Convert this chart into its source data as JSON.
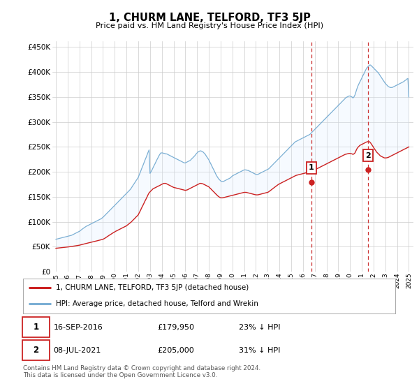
{
  "title": "1, CHURM LANE, TELFORD, TF3 5JP",
  "subtitle": "Price paid vs. HM Land Registry's House Price Index (HPI)",
  "ylabel_ticks": [
    "£0",
    "£50K",
    "£100K",
    "£150K",
    "£200K",
    "£250K",
    "£300K",
    "£350K",
    "£400K",
    "£450K"
  ],
  "ytick_values": [
    0,
    50000,
    100000,
    150000,
    200000,
    250000,
    300000,
    350000,
    400000,
    450000
  ],
  "ylim": [
    0,
    462000
  ],
  "xlim_start": 1994.7,
  "xlim_end": 2025.4,
  "background_color": "#ffffff",
  "grid_color": "#cccccc",
  "hpi_color": "#7bafd4",
  "hpi_fill_color": "#ddeeff",
  "property_color": "#cc2222",
  "annotation_line_color": "#cc3333",
  "annotations": [
    {
      "label": "1",
      "x_year": 2016.71,
      "y_value": 179950,
      "date": "16-SEP-2016",
      "price": "£179,950",
      "pct": "23% ↓ HPI"
    },
    {
      "label": "2",
      "x_year": 2021.52,
      "y_value": 205000,
      "date": "08-JUL-2021",
      "price": "£205,000",
      "pct": "31% ↓ HPI"
    }
  ],
  "legend_entries": [
    {
      "label": "1, CHURM LANE, TELFORD, TF3 5JP (detached house)",
      "color": "#cc2222"
    },
    {
      "label": "HPI: Average price, detached house, Telford and Wrekin",
      "color": "#7bafd4"
    }
  ],
  "footnote": "Contains HM Land Registry data © Crown copyright and database right 2024.\nThis data is licensed under the Open Government Licence v3.0.",
  "hpi_years": [
    1995.0,
    1995.08,
    1995.17,
    1995.25,
    1995.33,
    1995.42,
    1995.5,
    1995.58,
    1995.67,
    1995.75,
    1995.83,
    1995.92,
    1996.0,
    1996.08,
    1996.17,
    1996.25,
    1996.33,
    1996.42,
    1996.5,
    1996.58,
    1996.67,
    1996.75,
    1996.83,
    1996.92,
    1997.0,
    1997.08,
    1997.17,
    1997.25,
    1997.33,
    1997.42,
    1997.5,
    1997.58,
    1997.67,
    1997.75,
    1997.83,
    1997.92,
    1998.0,
    1998.08,
    1998.17,
    1998.25,
    1998.33,
    1998.42,
    1998.5,
    1998.58,
    1998.67,
    1998.75,
    1998.83,
    1998.92,
    1999.0,
    1999.08,
    1999.17,
    1999.25,
    1999.33,
    1999.42,
    1999.5,
    1999.58,
    1999.67,
    1999.75,
    1999.83,
    1999.92,
    2000.0,
    2000.08,
    2000.17,
    2000.25,
    2000.33,
    2000.42,
    2000.5,
    2000.58,
    2000.67,
    2000.75,
    2000.83,
    2000.92,
    2001.0,
    2001.08,
    2001.17,
    2001.25,
    2001.33,
    2001.42,
    2001.5,
    2001.58,
    2001.67,
    2001.75,
    2001.83,
    2001.92,
    2002.0,
    2002.08,
    2002.17,
    2002.25,
    2002.33,
    2002.42,
    2002.5,
    2002.58,
    2002.67,
    2002.75,
    2002.83,
    2002.92,
    2003.0,
    2003.08,
    2003.17,
    2003.25,
    2003.33,
    2003.42,
    2003.5,
    2003.58,
    2003.67,
    2003.75,
    2003.83,
    2003.92,
    2004.0,
    2004.08,
    2004.17,
    2004.25,
    2004.33,
    2004.42,
    2004.5,
    2004.58,
    2004.67,
    2004.75,
    2004.83,
    2004.92,
    2005.0,
    2005.08,
    2005.17,
    2005.25,
    2005.33,
    2005.42,
    2005.5,
    2005.58,
    2005.67,
    2005.75,
    2005.83,
    2005.92,
    2006.0,
    2006.08,
    2006.17,
    2006.25,
    2006.33,
    2006.42,
    2006.5,
    2006.58,
    2006.67,
    2006.75,
    2006.83,
    2006.92,
    2007.0,
    2007.08,
    2007.17,
    2007.25,
    2007.33,
    2007.42,
    2007.5,
    2007.58,
    2007.67,
    2007.75,
    2007.83,
    2007.92,
    2008.0,
    2008.08,
    2008.17,
    2008.25,
    2008.33,
    2008.42,
    2008.5,
    2008.58,
    2008.67,
    2008.75,
    2008.83,
    2008.92,
    2009.0,
    2009.08,
    2009.17,
    2009.25,
    2009.33,
    2009.42,
    2009.5,
    2009.58,
    2009.67,
    2009.75,
    2009.83,
    2009.92,
    2010.0,
    2010.08,
    2010.17,
    2010.25,
    2010.33,
    2010.42,
    2010.5,
    2010.58,
    2010.67,
    2010.75,
    2010.83,
    2010.92,
    2011.0,
    2011.08,
    2011.17,
    2011.25,
    2011.33,
    2011.42,
    2011.5,
    2011.58,
    2011.67,
    2011.75,
    2011.83,
    2011.92,
    2012.0,
    2012.08,
    2012.17,
    2012.25,
    2012.33,
    2012.42,
    2012.5,
    2012.58,
    2012.67,
    2012.75,
    2012.83,
    2012.92,
    2013.0,
    2013.08,
    2013.17,
    2013.25,
    2013.33,
    2013.42,
    2013.5,
    2013.58,
    2013.67,
    2013.75,
    2013.83,
    2013.92,
    2014.0,
    2014.08,
    2014.17,
    2014.25,
    2014.33,
    2014.42,
    2014.5,
    2014.58,
    2014.67,
    2014.75,
    2014.83,
    2014.92,
    2015.0,
    2015.08,
    2015.17,
    2015.25,
    2015.33,
    2015.42,
    2015.5,
    2015.58,
    2015.67,
    2015.75,
    2015.83,
    2015.92,
    2016.0,
    2016.08,
    2016.17,
    2016.25,
    2016.33,
    2016.42,
    2016.5,
    2016.58,
    2016.67,
    2016.75,
    2016.83,
    2016.92,
    2017.0,
    2017.08,
    2017.17,
    2017.25,
    2017.33,
    2017.42,
    2017.5,
    2017.58,
    2017.67,
    2017.75,
    2017.83,
    2017.92,
    2018.0,
    2018.08,
    2018.17,
    2018.25,
    2018.33,
    2018.42,
    2018.5,
    2018.58,
    2018.67,
    2018.75,
    2018.83,
    2018.92,
    2019.0,
    2019.08,
    2019.17,
    2019.25,
    2019.33,
    2019.42,
    2019.5,
    2019.58,
    2019.67,
    2019.75,
    2019.83,
    2019.92,
    2020.0,
    2020.08,
    2020.17,
    2020.25,
    2020.33,
    2020.42,
    2020.5,
    2020.58,
    2020.67,
    2020.75,
    2020.83,
    2020.92,
    2021.0,
    2021.08,
    2021.17,
    2021.25,
    2021.33,
    2021.42,
    2021.5,
    2021.58,
    2021.67,
    2021.75,
    2021.83,
    2021.92,
    2022.0,
    2022.08,
    2022.17,
    2022.25,
    2022.33,
    2022.42,
    2022.5,
    2022.58,
    2022.67,
    2022.75,
    2022.83,
    2022.92,
    2023.0,
    2023.08,
    2023.17,
    2023.25,
    2023.33,
    2023.42,
    2023.5,
    2023.58,
    2023.67,
    2023.75,
    2023.83,
    2023.92,
    2024.0,
    2024.08,
    2024.17,
    2024.25,
    2024.33,
    2024.42,
    2024.5,
    2024.58,
    2024.67,
    2024.75,
    2024.83,
    2024.92,
    2025.0
  ],
  "hpi_values": [
    65000,
    65500,
    66000,
    66500,
    67000,
    67500,
    68000,
    68500,
    69000,
    69500,
    70000,
    70500,
    71000,
    71500,
    72000,
    72500,
    73000,
    74000,
    75000,
    76000,
    77000,
    78000,
    79000,
    80000,
    81000,
    82500,
    84000,
    85500,
    87000,
    88500,
    90000,
    91000,
    92000,
    93000,
    94000,
    95000,
    96000,
    97000,
    98000,
    99000,
    100000,
    101000,
    102000,
    103000,
    104000,
    105000,
    106000,
    107500,
    109000,
    111000,
    113000,
    115000,
    117000,
    119000,
    121000,
    123000,
    125000,
    127000,
    129000,
    131000,
    133000,
    135000,
    137000,
    139000,
    141000,
    143000,
    145000,
    147000,
    149000,
    151000,
    153000,
    155000,
    157000,
    159000,
    161000,
    163000,
    165000,
    168000,
    171000,
    174000,
    177000,
    180000,
    183000,
    186000,
    189000,
    194000,
    199000,
    204000,
    209000,
    214000,
    219000,
    224000,
    229000,
    234000,
    239000,
    244000,
    197000,
    200000,
    204000,
    208000,
    212000,
    216000,
    220000,
    224000,
    228000,
    232000,
    235000,
    238000,
    238000,
    238000,
    237000,
    237000,
    236000,
    236000,
    235000,
    234000,
    233000,
    232000,
    231000,
    230000,
    229000,
    228000,
    227000,
    226000,
    225000,
    224000,
    223000,
    222000,
    221000,
    220000,
    219000,
    218000,
    218000,
    219000,
    220000,
    221000,
    222000,
    223000,
    225000,
    227000,
    229000,
    231000,
    233000,
    236000,
    238000,
    240000,
    241000,
    242000,
    242000,
    241000,
    240000,
    238000,
    236000,
    233000,
    230000,
    227000,
    224000,
    220000,
    216000,
    212000,
    208000,
    204000,
    200000,
    196000,
    192000,
    189000,
    186000,
    184000,
    182000,
    181000,
    181000,
    181000,
    182000,
    183000,
    184000,
    185000,
    186000,
    187000,
    188000,
    190000,
    192000,
    193000,
    194000,
    195000,
    196000,
    197000,
    198000,
    199000,
    200000,
    201000,
    202000,
    203000,
    204000,
    204000,
    204000,
    203000,
    203000,
    202000,
    201000,
    200000,
    199000,
    198000,
    197000,
    196000,
    195000,
    195000,
    195000,
    196000,
    197000,
    198000,
    199000,
    200000,
    201000,
    202000,
    203000,
    204000,
    205000,
    206000,
    208000,
    210000,
    212000,
    214000,
    216000,
    218000,
    220000,
    222000,
    224000,
    226000,
    228000,
    230000,
    232000,
    234000,
    236000,
    238000,
    240000,
    242000,
    244000,
    246000,
    248000,
    250000,
    252000,
    254000,
    256000,
    258000,
    260000,
    261000,
    262000,
    263000,
    264000,
    265000,
    266000,
    267000,
    268000,
    269000,
    270000,
    271000,
    272000,
    273000,
    274000,
    275000,
    277000,
    279000,
    281000,
    283000,
    285000,
    287000,
    289000,
    291000,
    293000,
    295000,
    297000,
    299000,
    301000,
    303000,
    305000,
    307000,
    309000,
    311000,
    313000,
    315000,
    317000,
    319000,
    321000,
    323000,
    325000,
    327000,
    329000,
    331000,
    333000,
    335000,
    337000,
    339000,
    341000,
    343000,
    345000,
    347000,
    349000,
    350000,
    351000,
    352000,
    352000,
    351000,
    350000,
    348000,
    350000,
    354000,
    360000,
    366000,
    372000,
    376000,
    380000,
    384000,
    388000,
    392000,
    396000,
    400000,
    404000,
    408000,
    410000,
    412000,
    414000,
    414000,
    412000,
    410000,
    408000,
    406000,
    404000,
    402000,
    400000,
    398000,
    395000,
    392000,
    389000,
    386000,
    383000,
    380000,
    377000,
    375000,
    373000,
    371000,
    370000,
    369000,
    369000,
    369000,
    370000,
    371000,
    372000,
    373000,
    374000,
    375000,
    376000,
    377000,
    378000,
    379000,
    380000,
    381000,
    383000,
    384000,
    386000,
    387000,
    350000
  ],
  "prop_years": [
    1995.0,
    1995.08,
    1995.17,
    1995.25,
    1995.33,
    1995.42,
    1995.5,
    1995.58,
    1995.67,
    1995.75,
    1995.83,
    1995.92,
    1996.0,
    1996.08,
    1996.17,
    1996.25,
    1996.33,
    1996.42,
    1996.5,
    1996.58,
    1996.67,
    1996.75,
    1996.83,
    1996.92,
    1997.0,
    1997.08,
    1997.17,
    1997.25,
    1997.33,
    1997.42,
    1997.5,
    1997.58,
    1997.67,
    1997.75,
    1997.83,
    1997.92,
    1998.0,
    1998.08,
    1998.17,
    1998.25,
    1998.33,
    1998.42,
    1998.5,
    1998.58,
    1998.67,
    1998.75,
    1998.83,
    1998.92,
    1999.0,
    1999.08,
    1999.17,
    1999.25,
    1999.33,
    1999.42,
    1999.5,
    1999.58,
    1999.67,
    1999.75,
    1999.83,
    1999.92,
    2000.0,
    2000.08,
    2000.17,
    2000.25,
    2000.33,
    2000.42,
    2000.5,
    2000.58,
    2000.67,
    2000.75,
    2000.83,
    2000.92,
    2001.0,
    2001.08,
    2001.17,
    2001.25,
    2001.33,
    2001.42,
    2001.5,
    2001.58,
    2001.67,
    2001.75,
    2001.83,
    2001.92,
    2002.0,
    2002.08,
    2002.17,
    2002.25,
    2002.33,
    2002.42,
    2002.5,
    2002.58,
    2002.67,
    2002.75,
    2002.83,
    2002.92,
    2003.0,
    2003.08,
    2003.17,
    2003.25,
    2003.33,
    2003.42,
    2003.5,
    2003.58,
    2003.67,
    2003.75,
    2003.83,
    2003.92,
    2004.0,
    2004.08,
    2004.17,
    2004.25,
    2004.33,
    2004.42,
    2004.5,
    2004.58,
    2004.67,
    2004.75,
    2004.83,
    2004.92,
    2005.0,
    2005.08,
    2005.17,
    2005.25,
    2005.33,
    2005.42,
    2005.5,
    2005.58,
    2005.67,
    2005.75,
    2005.83,
    2005.92,
    2006.0,
    2006.08,
    2006.17,
    2006.25,
    2006.33,
    2006.42,
    2006.5,
    2006.58,
    2006.67,
    2006.75,
    2006.83,
    2006.92,
    2007.0,
    2007.08,
    2007.17,
    2007.25,
    2007.33,
    2007.42,
    2007.5,
    2007.58,
    2007.67,
    2007.75,
    2007.83,
    2007.92,
    2008.0,
    2008.08,
    2008.17,
    2008.25,
    2008.33,
    2008.42,
    2008.5,
    2008.58,
    2008.67,
    2008.75,
    2008.83,
    2008.92,
    2009.0,
    2009.08,
    2009.17,
    2009.25,
    2009.33,
    2009.42,
    2009.5,
    2009.58,
    2009.67,
    2009.75,
    2009.83,
    2009.92,
    2010.0,
    2010.08,
    2010.17,
    2010.25,
    2010.33,
    2010.42,
    2010.5,
    2010.58,
    2010.67,
    2010.75,
    2010.83,
    2010.92,
    2011.0,
    2011.08,
    2011.17,
    2011.25,
    2011.33,
    2011.42,
    2011.5,
    2011.58,
    2011.67,
    2011.75,
    2011.83,
    2011.92,
    2012.0,
    2012.08,
    2012.17,
    2012.25,
    2012.33,
    2012.42,
    2012.5,
    2012.58,
    2012.67,
    2012.75,
    2012.83,
    2012.92,
    2013.0,
    2013.08,
    2013.17,
    2013.25,
    2013.33,
    2013.42,
    2013.5,
    2013.58,
    2013.67,
    2013.75,
    2013.83,
    2013.92,
    2014.0,
    2014.08,
    2014.17,
    2014.25,
    2014.33,
    2014.42,
    2014.5,
    2014.58,
    2014.67,
    2014.75,
    2014.83,
    2014.92,
    2015.0,
    2015.08,
    2015.17,
    2015.25,
    2015.33,
    2015.42,
    2015.5,
    2015.58,
    2015.67,
    2015.75,
    2015.83,
    2015.92,
    2016.0,
    2016.08,
    2016.17,
    2016.25,
    2016.33,
    2016.42,
    2016.5,
    2016.58,
    2016.67,
    2016.75,
    2016.83,
    2016.92,
    2017.0,
    2017.08,
    2017.17,
    2017.25,
    2017.33,
    2017.42,
    2017.5,
    2017.58,
    2017.67,
    2017.75,
    2017.83,
    2017.92,
    2018.0,
    2018.08,
    2018.17,
    2018.25,
    2018.33,
    2018.42,
    2018.5,
    2018.58,
    2018.67,
    2018.75,
    2018.83,
    2018.92,
    2019.0,
    2019.08,
    2019.17,
    2019.25,
    2019.33,
    2019.42,
    2019.5,
    2019.58,
    2019.67,
    2019.75,
    2019.83,
    2019.92,
    2020.0,
    2020.08,
    2020.17,
    2020.25,
    2020.33,
    2020.42,
    2020.5,
    2020.58,
    2020.67,
    2020.75,
    2020.83,
    2020.92,
    2021.0,
    2021.08,
    2021.17,
    2021.25,
    2021.33,
    2021.42,
    2021.5,
    2021.58,
    2021.67,
    2021.75,
    2021.83,
    2021.92,
    2022.0,
    2022.08,
    2022.17,
    2022.25,
    2022.33,
    2022.42,
    2022.5,
    2022.58,
    2022.67,
    2022.75,
    2022.83,
    2022.92,
    2023.0,
    2023.08,
    2023.17,
    2023.25,
    2023.33,
    2023.42,
    2023.5,
    2023.58,
    2023.67,
    2023.75,
    2023.83,
    2023.92,
    2024.0,
    2024.08,
    2024.17,
    2024.25,
    2024.33,
    2024.42,
    2024.5,
    2024.58,
    2024.67,
    2024.75,
    2024.83,
    2024.92,
    2025.0
  ],
  "prop_values": [
    47000,
    47200,
    47400,
    47600,
    47800,
    48000,
    48200,
    48400,
    48600,
    48800,
    49000,
    49200,
    49500,
    49800,
    50100,
    50400,
    50700,
    51000,
    51300,
    51600,
    51900,
    52200,
    52500,
    52800,
    53200,
    53700,
    54200,
    54700,
    55200,
    55700,
    56200,
    56700,
    57200,
    57700,
    58200,
    58700,
    59000,
    59500,
    60000,
    60500,
    61000,
    61500,
    62000,
    62500,
    63000,
    63500,
    64000,
    64500,
    65000,
    66000,
    67200,
    68500,
    69800,
    71200,
    72500,
    73800,
    75000,
    76300,
    77500,
    78800,
    80000,
    81000,
    82000,
    83000,
    84000,
    85000,
    86000,
    87000,
    88000,
    89000,
    90000,
    91000,
    92000,
    93500,
    95000,
    96500,
    98000,
    100000,
    102000,
    104000,
    106000,
    108000,
    110000,
    112000,
    114000,
    118000,
    122000,
    126000,
    130000,
    134000,
    138000,
    142000,
    146000,
    150000,
    154000,
    158000,
    160000,
    162000,
    164000,
    166000,
    167000,
    168000,
    169000,
    170000,
    171000,
    172000,
    173000,
    174000,
    175000,
    176000,
    177000,
    177000,
    177000,
    176000,
    175000,
    174000,
    173000,
    172000,
    171000,
    170000,
    169000,
    168500,
    168000,
    167500,
    167000,
    166500,
    166000,
    165500,
    165000,
    164500,
    164000,
    163500,
    163000,
    163500,
    164000,
    165000,
    166000,
    167000,
    168000,
    169000,
    170000,
    171000,
    172000,
    173000,
    174000,
    175000,
    176000,
    177000,
    177000,
    176500,
    176000,
    175000,
    174000,
    173000,
    172000,
    171000,
    170000,
    168000,
    166000,
    164000,
    162000,
    160000,
    158000,
    156000,
    154000,
    152000,
    150500,
    149000,
    148000,
    148000,
    148000,
    148500,
    149000,
    149500,
    150000,
    150500,
    151000,
    151500,
    152000,
    152500,
    153000,
    153500,
    154000,
    154500,
    155000,
    155500,
    156000,
    156500,
    157000,
    157500,
    158000,
    158500,
    159000,
    159000,
    159000,
    158500,
    158000,
    157500,
    157000,
    156500,
    156000,
    155500,
    155000,
    154500,
    154000,
    154000,
    154000,
    154500,
    155000,
    155500,
    156000,
    156500,
    157000,
    157500,
    158000,
    158500,
    159000,
    160000,
    161500,
    163000,
    164500,
    166000,
    167500,
    169000,
    170500,
    172000,
    173500,
    175000,
    176000,
    177000,
    178000,
    179000,
    180000,
    181000,
    182000,
    183000,
    184000,
    185000,
    186000,
    187000,
    188000,
    189000,
    190000,
    191000,
    192000,
    193000,
    193500,
    194000,
    194500,
    195000,
    195500,
    196000,
    196500,
    197000,
    197500,
    198000,
    198500,
    199000,
    199500,
    200000,
    200500,
    201000,
    202000,
    203000,
    204000,
    205000,
    206000,
    207000,
    208000,
    209000,
    210000,
    211000,
    212000,
    213000,
    214000,
    215000,
    216000,
    217000,
    218000,
    219000,
    220000,
    221000,
    222000,
    223000,
    224000,
    225000,
    226000,
    227000,
    228000,
    229000,
    230000,
    231000,
    232000,
    233000,
    234000,
    235000,
    235500,
    236000,
    236500,
    237000,
    237000,
    236500,
    236000,
    235000,
    236000,
    238000,
    242000,
    246000,
    249000,
    251000,
    253000,
    254000,
    255000,
    256000,
    257000,
    258000,
    259000,
    260000,
    260500,
    261000,
    260000,
    258000,
    255000,
    252000,
    249000,
    246000,
    243000,
    240000,
    238000,
    236000,
    234000,
    232000,
    231000,
    230000,
    229000,
    228000,
    228000,
    228000,
    228500,
    229000,
    230000,
    231000,
    232000,
    233000,
    234000,
    235000,
    236000,
    237000,
    238000,
    239000,
    240000,
    241000,
    242000,
    243000,
    244000,
    245000,
    246000,
    247000,
    248000,
    249000,
    250000
  ]
}
